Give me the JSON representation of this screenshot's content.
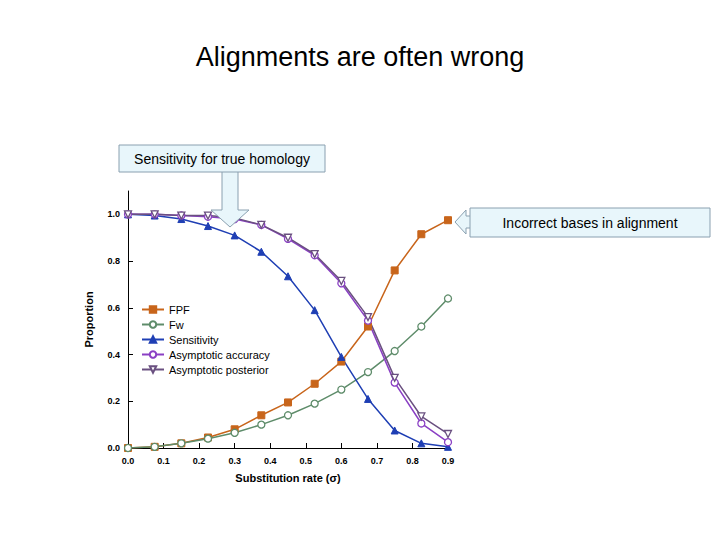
{
  "chart_data": {
    "type": "line",
    "title": "Alignments are often wrong",
    "x_label": "Substitution rate (σ)",
    "y_label": "Proportion",
    "annotations": [
      "Sensitivity for true homology",
      "Incorrect bases in alignment"
    ],
    "x": [
      0,
      0.075,
      0.15,
      0.225,
      0.3,
      0.375,
      0.45,
      0.525,
      0.6,
      0.675,
      0.75,
      0.825,
      0.9
    ],
    "series": [
      {
        "name": "FPF",
        "color": "#c8651b",
        "marker": "square",
        "values": [
          0,
          0.005,
          0.02,
          0.045,
          0.08,
          0.14,
          0.195,
          0.275,
          0.37,
          0.52,
          0.76,
          0.915,
          0.975
        ]
      },
      {
        "name": "Fw",
        "color": "#5e8c6a",
        "marker": "circle-open",
        "values": [
          0,
          0.005,
          0.02,
          0.04,
          0.065,
          0.1,
          0.14,
          0.19,
          0.25,
          0.325,
          0.415,
          0.52,
          0.64
        ]
      },
      {
        "name": "Sensitivity",
        "color": "#1f3fb4",
        "marker": "triangle",
        "values": [
          1.0,
          0.995,
          0.98,
          0.95,
          0.91,
          0.84,
          0.735,
          0.59,
          0.39,
          0.21,
          0.075,
          0.02,
          0.005
        ]
      },
      {
        "name": "Asymptotic accuracy",
        "color": "#8a3fc4",
        "marker": "circle-open",
        "values": [
          1.0,
          1.0,
          0.995,
          0.99,
          0.98,
          0.955,
          0.895,
          0.825,
          0.705,
          0.545,
          0.28,
          0.105,
          0.025
        ]
      },
      {
        "name": "Asymptotic posterior",
        "color": "#6a5080",
        "marker": "triangle-down-open",
        "values": [
          1.0,
          1.0,
          0.995,
          0.995,
          0.985,
          0.955,
          0.9,
          0.83,
          0.715,
          0.56,
          0.3,
          0.135,
          0.06
        ]
      }
    ],
    "xlim": [
      0,
      0.9
    ],
    "ylim": [
      0,
      1.1
    ],
    "xticks": [
      {
        "value": 0,
        "label": "0.0"
      },
      0.1,
      0.2,
      0.3,
      0.4,
      0.5,
      0.6,
      0.7,
      0.8,
      0.9
    ],
    "yticks": [
      {
        "value": 0,
        "label": "0.0"
      },
      0.2,
      0.4,
      0.6,
      0.8,
      {
        "value": 1,
        "label": "1.0"
      }
    ],
    "grid": false,
    "legend": "lower left"
  }
}
